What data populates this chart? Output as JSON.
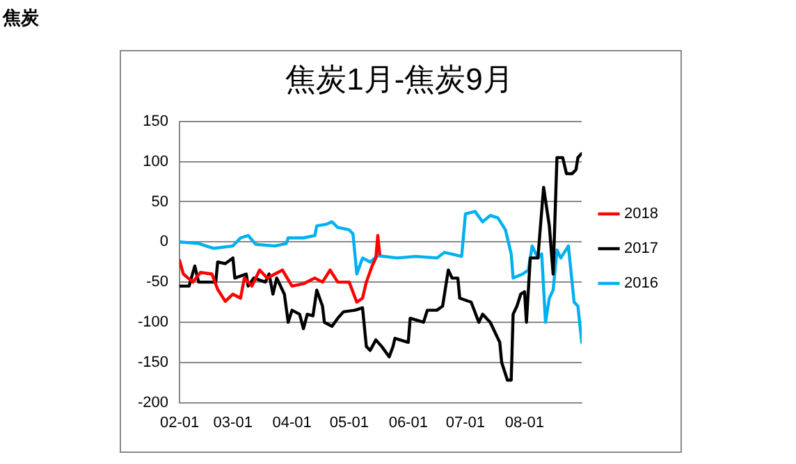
{
  "chart_data": {
    "type": "line",
    "title": "焦炭1月-焦炭9月",
    "annotations": [
      "焦炭"
    ],
    "xlim": [
      "--02-01",
      "--08-31"
    ],
    "xticks": [
      {
        "value": "--02-01",
        "label": "02-01"
      },
      {
        "value": "--03-01",
        "label": "03-01"
      },
      {
        "value": "--04-01",
        "label": "04-01"
      },
      {
        "value": "--05-01",
        "label": "05-01"
      },
      {
        "value": "--06-01",
        "label": "06-01"
      },
      {
        "value": "--07-01",
        "label": "07-01"
      },
      {
        "value": "--08-01",
        "label": "08-01"
      }
    ],
    "ylim": [
      -200,
      150
    ],
    "yticks": [
      -200,
      -150,
      -100,
      -50,
      0,
      50,
      100,
      150
    ],
    "grid": "y",
    "legend": "right",
    "marker": "none",
    "line_style": "solid",
    "series": [
      {
        "name": "2018",
        "color": "#ff0000",
        "x": [
          "--02-01",
          "--02-03",
          "--02-08",
          "--02-12",
          "--02-18",
          "--02-21",
          "--02-25",
          "--03-01",
          "--03-05",
          "--03-07",
          "--03-11",
          "--03-15",
          "--03-19",
          "--03-23",
          "--03-27",
          "--04-01",
          "--04-07",
          "--04-13",
          "--04-17",
          "--04-21",
          "--04-25",
          "--05-01",
          "--05-05",
          "--05-08",
          "--05-10",
          "--05-13",
          "--05-15",
          "--05-16",
          "--05-17"
        ],
        "values": [
          -23,
          -40,
          -50,
          -38,
          -40,
          -59,
          -74,
          -65,
          -70,
          -45,
          -55,
          -35,
          -45,
          -40,
          -35,
          -55,
          -52,
          -45,
          -50,
          -35,
          -50,
          -50,
          -75,
          -70,
          -50,
          -30,
          -20,
          8,
          -15
        ]
      },
      {
        "name": "2017",
        "color": "#000000",
        "x": [
          "--02-01",
          "--02-06",
          "--02-09",
          "--02-11",
          "--02-20",
          "--02-21",
          "--02-25",
          "--03-01",
          "--03-02",
          "--03-08",
          "--03-09",
          "--03-12",
          "--03-18",
          "--03-20",
          "--03-22",
          "--03-24",
          "--03-28",
          "--03-30",
          "--04-01",
          "--04-05",
          "--04-07",
          "--04-09",
          "--04-12",
          "--04-14",
          "--04-17",
          "--04-18",
          "--04-22",
          "--04-25",
          "--04-28",
          "--05-04",
          "--05-08",
          "--05-10",
          "--05-12",
          "--05-15",
          "--05-18",
          "--05-22",
          "--05-24",
          "--05-25",
          "--06-01",
          "--06-02",
          "--06-09",
          "--06-11",
          "--06-16",
          "--06-19",
          "--06-22",
          "--06-24",
          "--06-27",
          "--06-28",
          "--07-04",
          "--07-08",
          "--07-10",
          "--07-14",
          "--07-19",
          "--07-20",
          "--07-23",
          "--07-25",
          "--07-26",
          "--07-28",
          "--07-30",
          "--08-01",
          "--08-02",
          "--08-04",
          "--08-06",
          "--08-08",
          "--08-11",
          "--08-14",
          "--08-16",
          "--08-18",
          "--08-21",
          "--08-23",
          "--08-26",
          "--08-28",
          "--08-29",
          "--08-31"
        ],
        "values": [
          -55,
          -55,
          -30,
          -50,
          -50,
          -25,
          -27,
          -20,
          -45,
          -40,
          -55,
          -45,
          -50,
          -40,
          -65,
          -45,
          -65,
          -100,
          -85,
          -90,
          -108,
          -90,
          -92,
          -60,
          -80,
          -100,
          -105,
          -95,
          -87,
          -85,
          -82,
          -130,
          -135,
          -122,
          -130,
          -143,
          -130,
          -120,
          -125,
          -95,
          -100,
          -85,
          -85,
          -80,
          -35,
          -45,
          -45,
          -70,
          -75,
          -100,
          -90,
          -100,
          -125,
          -150,
          -172,
          -172,
          -90,
          -80,
          -65,
          -62,
          -100,
          -20,
          -20,
          -20,
          68,
          20,
          -40,
          105,
          105,
          85,
          85,
          90,
          105,
          110
        ]
      },
      {
        "name": "2016",
        "color": "#00b0f0",
        "x": [
          "--02-01",
          "--02-11",
          "--02-19",
          "--03-01",
          "--03-05",
          "--03-09",
          "--03-13",
          "--03-23",
          "--03-29",
          "--03-30",
          "--04-07",
          "--04-13",
          "--04-14",
          "--04-19",
          "--04-22",
          "--04-25",
          "--05-01",
          "--05-03",
          "--05-05",
          "--05-08",
          "--05-12",
          "--05-16",
          "--05-26",
          "--06-05",
          "--06-16",
          "--06-20",
          "--06-29",
          "--07-01",
          "--07-06",
          "--07-10",
          "--07-14",
          "--07-18",
          "--07-22",
          "--07-25",
          "--07-26",
          "--07-31",
          "--08-03",
          "--08-05",
          "--08-08",
          "--08-10",
          "--08-12",
          "--08-14",
          "--08-16",
          "--08-18",
          "--08-20",
          "--08-24",
          "--08-27",
          "--08-29",
          "--08-31"
        ],
        "values": [
          0,
          -2,
          -8,
          -5,
          5,
          8,
          -3,
          -5,
          -2,
          5,
          5,
          8,
          20,
          22,
          25,
          18,
          15,
          10,
          -40,
          -20,
          -25,
          -17,
          -20,
          -18,
          -20,
          -13,
          -18,
          35,
          38,
          25,
          33,
          30,
          15,
          -15,
          -45,
          -40,
          -35,
          -5,
          -20,
          -15,
          -100,
          -70,
          -60,
          -10,
          -20,
          -5,
          -75,
          -80,
          -125
        ]
      }
    ]
  }
}
